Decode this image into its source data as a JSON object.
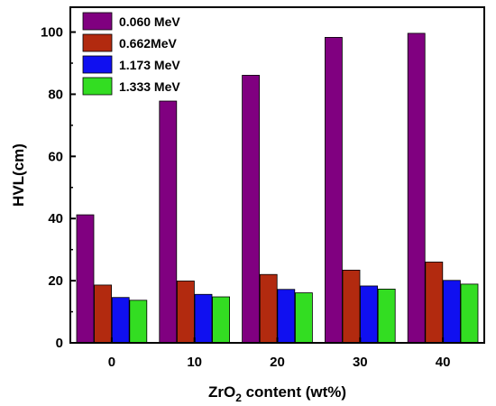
{
  "chart_data": {
    "type": "bar",
    "xlabel": {
      "main": "ZrO",
      "sub": "2",
      "rest": " content (wt%)"
    },
    "ylabel": "HVL(cm)",
    "categories": [
      "0",
      "10",
      "20",
      "30",
      "40"
    ],
    "ylim": [
      0,
      108
    ],
    "yticks": [
      0,
      20,
      40,
      60,
      80,
      100
    ],
    "grid": false,
    "legend_position": "top-left",
    "series": [
      {
        "name": "0.060 MeV",
        "color": "#800080",
        "values": [
          41.2,
          77.8,
          86.1,
          98.3,
          99.6
        ]
      },
      {
        "name": "0.662MeV",
        "color": "#b22a0f",
        "values": [
          18.6,
          19.9,
          22.0,
          23.4,
          26.0
        ]
      },
      {
        "name": "1.173 MeV",
        "color": "#1010f0",
        "values": [
          14.6,
          15.6,
          17.2,
          18.3,
          20.1
        ]
      },
      {
        "name": "1.333 MeV",
        "color": "#33dd22",
        "values": [
          13.7,
          14.8,
          16.1,
          17.3,
          18.9
        ]
      }
    ]
  }
}
